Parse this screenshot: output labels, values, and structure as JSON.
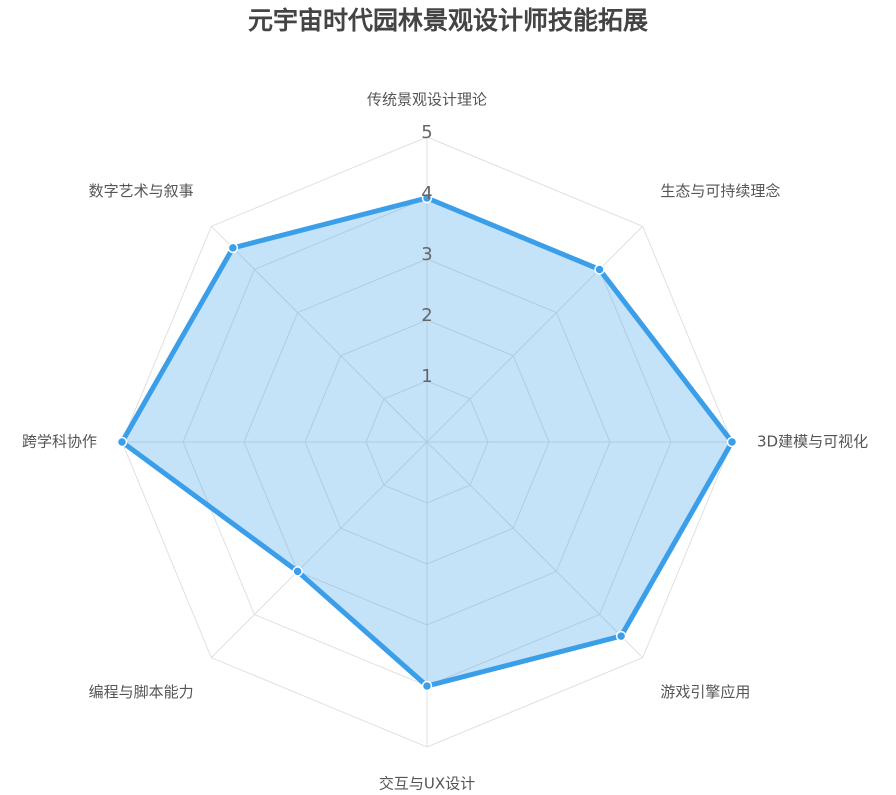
{
  "chart_data": {
    "type": "radar",
    "title": "元宇宙时代园林景观设计师技能拓展",
    "categories": [
      "传统景观设计理论",
      "生态与可持续理念",
      "3D建模与可视化",
      "游戏引擎应用",
      "交互与UX设计",
      "编程与脚本能力",
      "跨学科协作",
      "数字艺术与叙事"
    ],
    "values": [
      4,
      4,
      5,
      4.5,
      4,
      3,
      5,
      4.5
    ],
    "color": "#3b9ee8",
    "ylim": [
      0,
      5
    ],
    "yticks": [
      1,
      2,
      3,
      4,
      5
    ],
    "grid": true
  }
}
